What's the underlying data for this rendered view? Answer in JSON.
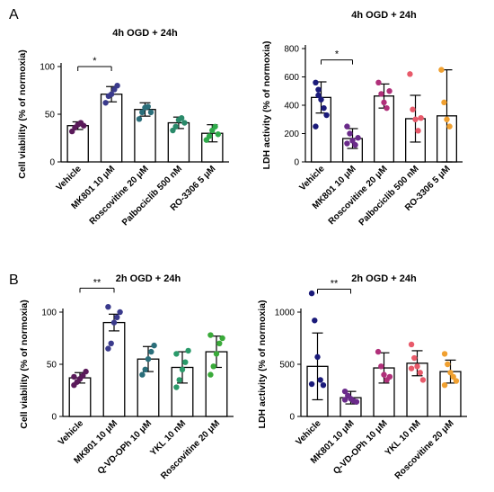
{
  "panel_labels": [
    "A",
    "B"
  ],
  "chart_data": [
    {
      "type": "bar",
      "title": "4h OGD + 24h",
      "ylabel": "Cell viability (% of normoxia)",
      "xlabel": "",
      "ylim": [
        0,
        100
      ],
      "yticks": [
        0,
        50,
        100
      ],
      "categories": [
        "Vehicle",
        "MK801 10 μM",
        "Roscovitine 20 μM",
        "Palbociclib 500 nM",
        "RO-3306 5 μM"
      ],
      "values": [
        38,
        71,
        55,
        41,
        30
      ],
      "errors": [
        4,
        8,
        7,
        6,
        9
      ],
      "colors": [
        "#5a1a5a",
        "#3a3a8c",
        "#2a6e7a",
        "#2a8a6a",
        "#2eaa4a"
      ],
      "points": [
        [
          32,
          36,
          39,
          41,
          38
        ],
        [
          62,
          69,
          71,
          76,
          80
        ],
        [
          45,
          52,
          57,
          58,
          52
        ],
        [
          33,
          37,
          44,
          46,
          41
        ],
        [
          23,
          27,
          33,
          37,
          29
        ]
      ],
      "significance": [
        {
          "from": 0,
          "to": 1,
          "label": "*",
          "y": 100
        }
      ]
    },
    {
      "type": "bar",
      "title": "4h OGD + 24h",
      "ylabel": "LDH activity (% of normoxia)",
      "xlabel": "",
      "ylim": [
        0,
        800
      ],
      "yticks": [
        0,
        200,
        400,
        600,
        800
      ],
      "categories": [
        "Vehicle",
        "MK801 10 μM",
        "Roscovitine 20 μM",
        "Palbociclib 500 nM",
        "RO-3306 5 μM"
      ],
      "values": [
        455,
        165,
        465,
        305,
        325
      ],
      "errors": [
        110,
        70,
        85,
        165,
        325
      ],
      "colors": [
        "#1a1a7a",
        "#6a2a8a",
        "#b0307a",
        "#e85a6a",
        "#f0a030"
      ],
      "points": [
        [
          560,
          510,
          440,
          380,
          330,
          250,
          470
        ],
        [
          250,
          200,
          150,
          120,
          170,
          130
        ],
        [
          560,
          480,
          420,
          380,
          500
        ],
        [
          620,
          370,
          300,
          220,
          310
        ],
        [
          650,
          420,
          300,
          250
        ]
      ],
      "significance": [
        {
          "from": 0,
          "to": 1,
          "label": "*",
          "y": 720
        }
      ]
    },
    {
      "type": "bar",
      "title": "2h OGD + 24h",
      "ylabel": "Cell viability (% of normoxia)",
      "xlabel": "",
      "ylim": [
        0,
        100
      ],
      "yticks": [
        0,
        50,
        100
      ],
      "categories": [
        "Vehicle",
        "MK801 10 μM",
        "Q-VD-OPh 10 μM",
        "YKL 10 nM",
        "Roscovitine 20 μM"
      ],
      "values": [
        37,
        90,
        55,
        47,
        62
      ],
      "errors": [
        5,
        8,
        12,
        15,
        15
      ],
      "colors": [
        "#5a1a5a",
        "#3a3a8c",
        "#2a6e7a",
        "#2a9a6a",
        "#3aaa3a"
      ],
      "points": [
        [
          30,
          33,
          36,
          39,
          43,
          38
        ],
        [
          65,
          70,
          90,
          95,
          100,
          105
        ],
        [
          40,
          45,
          55,
          62,
          68
        ],
        [
          28,
          35,
          45,
          52,
          63,
          60
        ],
        [
          40,
          48,
          60,
          70,
          75,
          78
        ]
      ],
      "significance": [
        {
          "from": 0,
          "to": 1,
          "label": "**",
          "y": 123
        }
      ]
    },
    {
      "type": "bar",
      "title": "2h OGD + 24h",
      "ylabel": "LDH activity (% of normoxia)",
      "xlabel": "",
      "ylim": [
        0,
        1000
      ],
      "yticks": [
        0,
        500,
        1000
      ],
      "categories": [
        "Vehicle",
        "MK801 10 μM",
        "Q-VD-OPh 10 μM",
        "YKL 10 nM",
        "Roscovitine 20 μM"
      ],
      "values": [
        480,
        180,
        465,
        510,
        430
      ],
      "errors": [
        320,
        60,
        145,
        120,
        110
      ],
      "colors": [
        "#1a1a7a",
        "#6a2a8a",
        "#b0307a",
        "#e85a6a",
        "#f0a030"
      ],
      "points": [
        [
          1180,
          920,
          570,
          350,
          300,
          310
        ],
        [
          240,
          200,
          170,
          150,
          140,
          160
        ],
        [
          620,
          480,
          400,
          350,
          380
        ],
        [
          690,
          560,
          480,
          420,
          350,
          460
        ],
        [
          600,
          500,
          420,
          380,
          340,
          300
        ]
      ],
      "significance": [
        {
          "from": 0,
          "to": 1,
          "label": "**",
          "y": 1220
        }
      ]
    }
  ]
}
